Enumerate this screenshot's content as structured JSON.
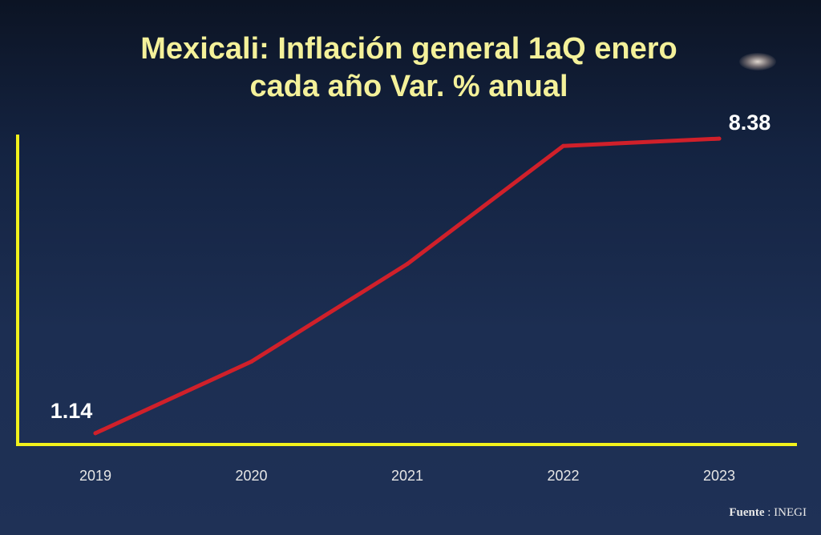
{
  "slide": {
    "title_line1": "Mexicali: Inflación general 1aQ enero",
    "title_line2": "cada año Var. % anual",
    "source_label": "Fuente",
    "source_sep": " : ",
    "source_value": "INEGI"
  },
  "chart_data": {
    "type": "line",
    "title": "Mexicali: Inflación general 1aQ enero cada año Var. % anual",
    "categories": [
      "2019",
      "2020",
      "2021",
      "2022",
      "2023"
    ],
    "series": [
      {
        "values": [
          1.14,
          2.9,
          5.3,
          8.2,
          8.38
        ],
        "color": "#d0202a"
      }
    ],
    "data_labels": [
      {
        "index": 0,
        "text": "1.14"
      },
      {
        "index": 4,
        "text": "8.38"
      }
    ],
    "ylim": [
      1.0,
      8.5
    ],
    "grid": false,
    "axis_color": "#f2f21c",
    "tick_label_color": "#e6e6e6",
    "data_label_color": "#ffffff"
  }
}
